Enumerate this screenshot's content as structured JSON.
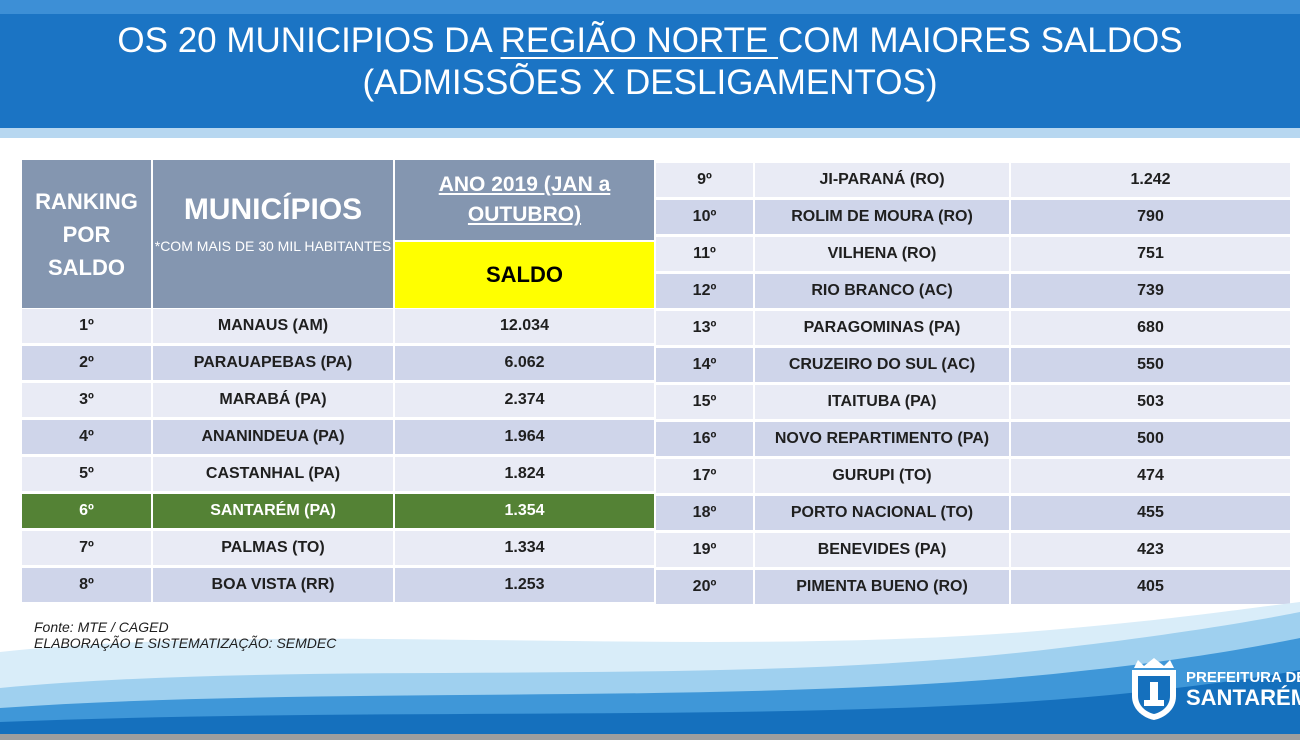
{
  "title": {
    "line1_pre": "OS 20 MUNICIPIOS DA ",
    "line1_underlined": "REGIÃO NORTE ",
    "line1_post": "COM MAIORES SALDOS",
    "line2": "(ADMISSÕES X DESLIGAMENTOS)"
  },
  "headers": {
    "ranking": "RANKING POR SALDO",
    "municipios": "MUNICÍPIOS",
    "municipios_note": "*COM MAIS DE 30 MIL HABITANTES",
    "year": "ANO 2019 (JAN a OUTUBRO)",
    "saldo": "SALDO"
  },
  "left_rows": [
    {
      "rank": "1º",
      "city": "MANAUS (AM)",
      "saldo": "12.034"
    },
    {
      "rank": "2º",
      "city": "PARAUAPEBAS (PA)",
      "saldo": "6.062"
    },
    {
      "rank": "3º",
      "city": "MARABÁ (PA)",
      "saldo": "2.374"
    },
    {
      "rank": "4º",
      "city": "ANANINDEUA (PA)",
      "saldo": "1.964"
    },
    {
      "rank": "5º",
      "city": "CASTANHAL (PA)",
      "saldo": "1.824"
    },
    {
      "rank": "6º",
      "city": "SANTARÉM (PA)",
      "saldo": "1.354"
    },
    {
      "rank": "7º",
      "city": "PALMAS (TO)",
      "saldo": "1.334"
    },
    {
      "rank": "8º",
      "city": "BOA VISTA (RR)",
      "saldo": "1.253"
    }
  ],
  "right_rows": [
    {
      "rank": "9º",
      "city": "JI-PARANÁ (RO)",
      "saldo": "1.242"
    },
    {
      "rank": "10º",
      "city": "ROLIM DE MOURA (RO)",
      "saldo": "790"
    },
    {
      "rank": "11º",
      "city": "VILHENA (RO)",
      "saldo": "751"
    },
    {
      "rank": "12º",
      "city": "RIO BRANCO (AC)",
      "saldo": "739"
    },
    {
      "rank": "13º",
      "city": "PARAGOMINAS (PA)",
      "saldo": "680"
    },
    {
      "rank": "14º",
      "city": "CRUZEIRO DO SUL (AC)",
      "saldo": "550"
    },
    {
      "rank": "15º",
      "city": "ITAITUBA (PA)",
      "saldo": "503"
    },
    {
      "rank": "16º",
      "city": "NOVO REPARTIMENTO (PA)",
      "saldo": "500"
    },
    {
      "rank": "17º",
      "city": "GURUPI (TO)",
      "saldo": "474"
    },
    {
      "rank": "18º",
      "city": "PORTO NACIONAL (TO)",
      "saldo": "455"
    },
    {
      "rank": "19º",
      "city": "BENEVIDES (PA)",
      "saldo": "423"
    },
    {
      "rank": "20º",
      "city": "PIMENTA BUENO (RO)",
      "saldo": "405"
    }
  ],
  "highlight_rank": "6º",
  "source": {
    "line1": "Fonte: MTE / CAGED",
    "line2": "ELABORAÇÃO E SISTEMATIZAÇÃO: SEMDEC"
  },
  "logo": {
    "icon": "city-coat-of-arms-icon",
    "line1": "PREFEITURA DE",
    "line2": "SANTARÉM"
  },
  "colors": {
    "header_blue": "#1b74c4",
    "table_header": "#8496b0",
    "saldo_yellow": "#ffff00",
    "highlight_green": "#548235",
    "row_light": "#e9ebf5",
    "row_dark": "#cfd5ea"
  }
}
